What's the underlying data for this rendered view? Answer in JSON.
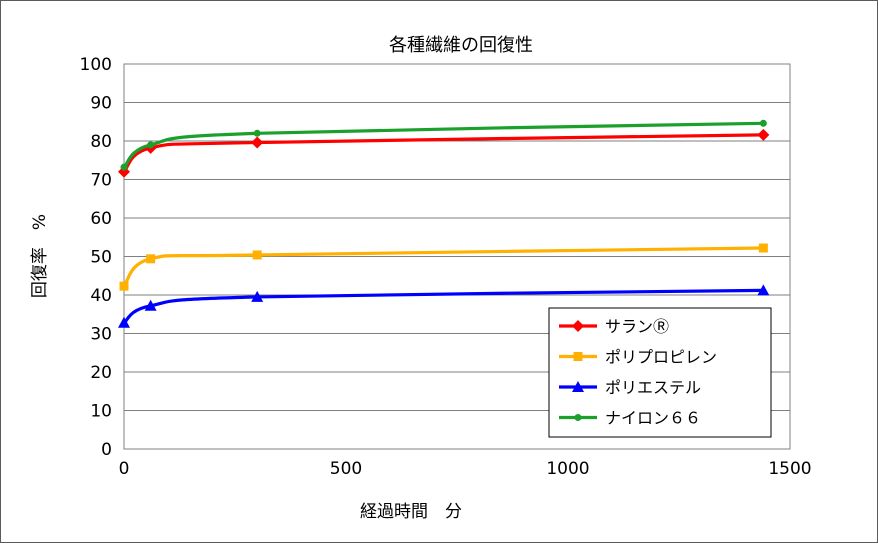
{
  "chart_data": {
    "type": "line",
    "title": "各種繊維の回復性",
    "xlabel": "経過時間　分",
    "ylabel": "回復率　%",
    "xlim": [
      0,
      1500
    ],
    "ylim": [
      0,
      100
    ],
    "x_ticks": [
      "0",
      "500",
      "1000",
      "1500"
    ],
    "y_ticks": [
      "0",
      "10",
      "20",
      "30",
      "40",
      "50",
      "60",
      "70",
      "80",
      "90",
      "100"
    ],
    "grid": "horizontal",
    "legend_position": "bottom-right",
    "series": [
      {
        "name": "サランⓇ",
        "color": "#ff0000",
        "marker": "diamond",
        "x": [
          0,
          60,
          300,
          1440
        ],
        "y": [
          72,
          78.2,
          79.6,
          81.6
        ]
      },
      {
        "name": "ポリプロピレン",
        "color": "#ffb000",
        "marker": "square",
        "x": [
          0,
          60,
          300,
          1440
        ],
        "y": [
          42.3,
          49.4,
          50.4,
          52.2
        ]
      },
      {
        "name": "ポリエステル",
        "color": "#0000ff",
        "marker": "triangle",
        "x": [
          0,
          60,
          300,
          1440
        ],
        "y": [
          32.8,
          37.2,
          39.5,
          41.2
        ]
      },
      {
        "name": "ナイロン６６",
        "color": "#1ca02c",
        "marker": "circle",
        "x": [
          0,
          60,
          300,
          1440
        ],
        "y": [
          73.2,
          79,
          82,
          84.6
        ]
      }
    ]
  }
}
